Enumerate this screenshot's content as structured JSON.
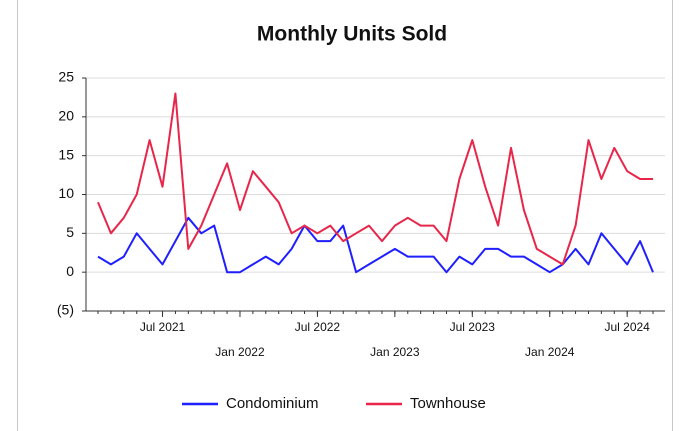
{
  "chart_data": {
    "type": "line",
    "title": "Monthly Units Sold",
    "x": [
      "Feb 2021",
      "Mar 2021",
      "Apr 2021",
      "May 2021",
      "Jun 2021",
      "Jul 2021",
      "Aug 2021",
      "Sep 2021",
      "Oct 2021",
      "Nov 2021",
      "Dec 2021",
      "Jan 2022",
      "Feb 2022",
      "Mar 2022",
      "Apr 2022",
      "May 2022",
      "Jun 2022",
      "Jul 2022",
      "Aug 2022",
      "Sep 2022",
      "Oct 2022",
      "Nov 2022",
      "Dec 2022",
      "Jan 2023",
      "Feb 2023",
      "Mar 2023",
      "Apr 2023",
      "May 2023",
      "Jun 2023",
      "Jul 2023",
      "Aug 2023",
      "Sep 2023",
      "Oct 2023",
      "Nov 2023",
      "Dec 2023",
      "Jan 2024",
      "Feb 2024",
      "Mar 2024",
      "Apr 2024",
      "May 2024",
      "Jun 2024",
      "Jul 2024",
      "Aug 2024",
      "Sep 2024"
    ],
    "xticks": [
      "Jul 2021",
      "Jan 2022",
      "Jul 2022",
      "Jan 2023",
      "Jul 2023",
      "Jan 2024",
      "Jul 2024"
    ],
    "series": [
      {
        "name": "Condominium",
        "color": "#1f1fff",
        "values": [
          2,
          1,
          2,
          5,
          3,
          1,
          4,
          7,
          5,
          6,
          0,
          0,
          1,
          2,
          1,
          3,
          6,
          4,
          4,
          6,
          0,
          1,
          2,
          3,
          2,
          2,
          2,
          0,
          2,
          1,
          3,
          3,
          2,
          2,
          1,
          0,
          1,
          3,
          1,
          5,
          3,
          1,
          4,
          0
        ]
      },
      {
        "name": "Townhouse",
        "color": "#e8264a",
        "values": [
          9,
          5,
          7,
          10,
          17,
          11,
          23,
          3,
          6,
          10,
          14,
          8,
          13,
          11,
          9,
          5,
          6,
          5,
          6,
          4,
          5,
          6,
          4,
          6,
          7,
          6,
          6,
          4,
          12,
          17,
          11,
          6,
          16,
          8,
          3,
          2,
          1,
          6,
          17,
          12,
          16,
          13,
          12,
          12
        ]
      }
    ],
    "ylim": [
      -5,
      25
    ],
    "yticks": [
      {
        "value": -5,
        "label": "(5)"
      },
      0,
      5,
      10,
      15,
      20,
      25
    ],
    "grid": true,
    "legend": "bottom"
  }
}
